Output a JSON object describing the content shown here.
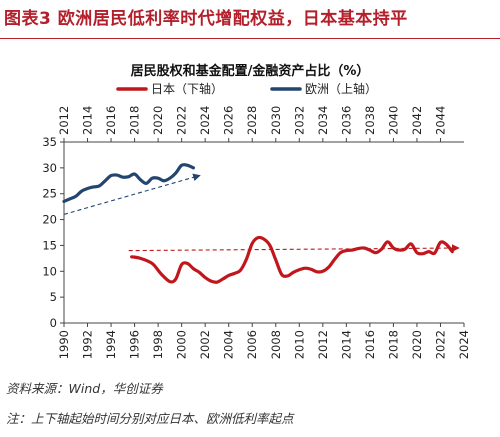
{
  "figure": {
    "title": "图表3  欧洲居民低利率时代增配权益，日本基本持平",
    "source": "资料来源：Wind，华创证券",
    "note": "注：上下轴起始时间分别对应日本、欧洲低利率起点"
  },
  "chart_data": {
    "type": "line",
    "title": "居民股权和基金配置/金融资产占比（%）",
    "y_axis": {
      "min": 0,
      "max": 35,
      "ticks": [
        0,
        5,
        10,
        15,
        20,
        25,
        30,
        35
      ]
    },
    "x_bottom": {
      "min": 1990,
      "max": 2024,
      "ticks": [
        "1990",
        "1992",
        "1994",
        "1996",
        "1998",
        "2000",
        "2002",
        "2004",
        "2006",
        "2008",
        "2010",
        "2012",
        "2014",
        "2016",
        "2018",
        "2020",
        "2022",
        "2024"
      ]
    },
    "x_top": {
      "min": 2012,
      "max": 2046,
      "ticks": [
        "2012",
        "2014",
        "2016",
        "2018",
        "2020",
        "2022",
        "2024",
        "2026",
        "2028",
        "2030",
        "2032",
        "2034",
        "2036",
        "2038",
        "2040",
        "2042",
        "2044"
      ]
    },
    "grid": false,
    "legend_position": "top",
    "series": [
      {
        "name": "日本（下轴）",
        "axis": "bottom",
        "color": "#c0161c",
        "x": [
          1995.75,
          1996.5,
          1997.5,
          1998.25,
          1999,
          1999.5,
          2000,
          2000.5,
          2001,
          2001.5,
          2002,
          2002.5,
          2003,
          2003.5,
          2004,
          2004.5,
          2005,
          2005.5,
          2006,
          2006.5,
          2007,
          2007.5,
          2008,
          2008.5,
          2009,
          2009.5,
          2010,
          2010.5,
          2011,
          2011.5,
          2012,
          2012.5,
          2013,
          2013.5,
          2014,
          2014.5,
          2015,
          2015.5,
          2016,
          2016.5,
          2017,
          2017.5,
          2018,
          2018.5,
          2019,
          2019.5,
          2020,
          2020.5,
          2021,
          2021.5,
          2022,
          2022.5,
          2023
        ],
        "y": [
          12.8,
          12.5,
          11.5,
          9.5,
          8.0,
          8.5,
          11.3,
          11.5,
          10.5,
          9.8,
          8.8,
          8.1,
          7.9,
          8.5,
          9.2,
          9.6,
          10.2,
          12.3,
          15.4,
          16.5,
          16.2,
          15.0,
          12.2,
          9.4,
          9.1,
          9.8,
          10.3,
          10.6,
          10.4,
          9.9,
          10.0,
          10.8,
          12.3,
          13.6,
          14.0,
          14.1,
          14.4,
          14.5,
          14.1,
          13.6,
          14.3,
          15.7,
          14.5,
          14.1,
          14.3,
          15.3,
          13.6,
          13.4,
          13.8,
          13.5,
          15.6,
          15.2,
          13.8
        ]
      },
      {
        "name": "欧洲（上轴）",
        "axis": "top",
        "color": "#22466f",
        "x": [
          2012,
          2012.5,
          2013,
          2013.5,
          2014,
          2014.5,
          2015,
          2015.5,
          2016,
          2016.5,
          2017,
          2017.5,
          2018,
          2018.5,
          2019,
          2019.5,
          2020,
          2020.5,
          2021,
          2021.5,
          2022,
          2022.5,
          2023
        ],
        "y": [
          23.5,
          24.0,
          24.5,
          25.5,
          26.0,
          26.3,
          26.5,
          27.5,
          28.5,
          28.6,
          28.2,
          28.3,
          28.8,
          27.7,
          27.0,
          28.0,
          28.0,
          27.5,
          28.0,
          29.0,
          30.5,
          30.5,
          30.0
        ]
      }
    ],
    "trend_arrows": [
      {
        "series": "日本（下轴）",
        "axis": "bottom",
        "from": [
          1995.5,
          14.0
        ],
        "to": [
          2023.5,
          14.5
        ],
        "color": "#c0161c"
      },
      {
        "series": "欧洲（上轴）",
        "axis": "top",
        "from": [
          2012,
          21.0
        ],
        "to": [
          2023.5,
          28.5
        ],
        "color": "#22466f"
      }
    ]
  }
}
